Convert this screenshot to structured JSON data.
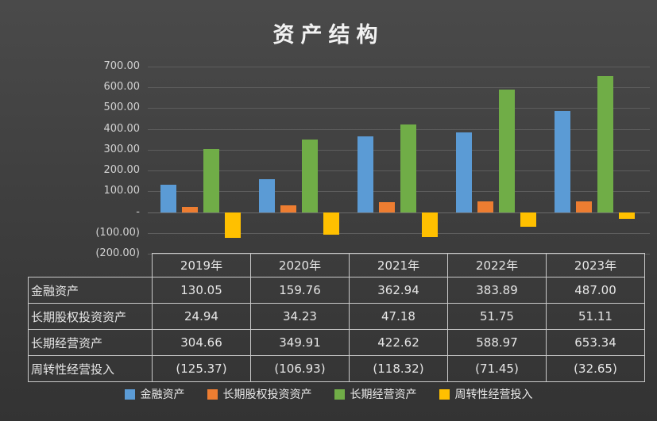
{
  "title": "资产结构",
  "colors": {
    "background": "#3f3f3f",
    "grid": "#5d5d5d",
    "text": "#e6e6e6",
    "table_border": "#c9c9c9",
    "series": [
      "#5B9BD5",
      "#ED7D31",
      "#70AD47",
      "#FFC000"
    ]
  },
  "chart_data": {
    "type": "bar",
    "title": "资产结构",
    "categories": [
      "2019年",
      "2020年",
      "2021年",
      "2022年",
      "2023年"
    ],
    "series": [
      {
        "name": "金融资产",
        "color": "#5B9BD5",
        "values": [
          130.05,
          159.76,
          362.94,
          383.89,
          487.0
        ]
      },
      {
        "name": "长期股权投资资产",
        "color": "#ED7D31",
        "values": [
          24.94,
          34.23,
          47.18,
          51.75,
          51.11
        ]
      },
      {
        "name": "长期经营资产",
        "color": "#70AD47",
        "values": [
          304.66,
          349.91,
          422.62,
          588.97,
          653.34
        ]
      },
      {
        "name": "周转性经营投入",
        "color": "#FFC000",
        "values": [
          -125.37,
          -106.93,
          -118.32,
          -71.45,
          -32.65
        ]
      }
    ],
    "ylim": [
      -200,
      700
    ],
    "ytick_step": 100,
    "yticks": [
      {
        "value": 700,
        "label": "700.00"
      },
      {
        "value": 600,
        "label": "600.00"
      },
      {
        "value": 500,
        "label": "500.00"
      },
      {
        "value": 400,
        "label": "400.00"
      },
      {
        "value": 300,
        "label": "300.00"
      },
      {
        "value": 200,
        "label": "200.00"
      },
      {
        "value": 100,
        "label": "100.00"
      },
      {
        "value": 0,
        "label": "-"
      },
      {
        "value": -100,
        "label": "(100.00)"
      },
      {
        "value": -200,
        "label": "(200.00)"
      }
    ],
    "grid": true,
    "legend_position": "bottom"
  },
  "table": {
    "col_headers": [
      "2019年",
      "2020年",
      "2021年",
      "2022年",
      "2023年"
    ],
    "rows": [
      {
        "label": "金融资产",
        "cells": [
          "130.05",
          "159.76",
          "362.94",
          "383.89",
          "487.00"
        ]
      },
      {
        "label": "长期股权投资资产",
        "cells": [
          "24.94",
          "34.23",
          "47.18",
          "51.75",
          "51.11"
        ]
      },
      {
        "label": "长期经营资产",
        "cells": [
          "304.66",
          "349.91",
          "422.62",
          "588.97",
          "653.34"
        ]
      },
      {
        "label": "周转性经营投入",
        "cells": [
          "(125.37)",
          "(106.93)",
          "(118.32)",
          "(71.45)",
          "(32.65)"
        ]
      }
    ]
  },
  "legend": {
    "items": [
      {
        "label": "金融资产",
        "color": "#5B9BD5"
      },
      {
        "label": "长期股权投资资产",
        "color": "#ED7D31"
      },
      {
        "label": "长期经营资产",
        "color": "#70AD47"
      },
      {
        "label": "周转性经营投入",
        "color": "#FFC000"
      }
    ]
  }
}
